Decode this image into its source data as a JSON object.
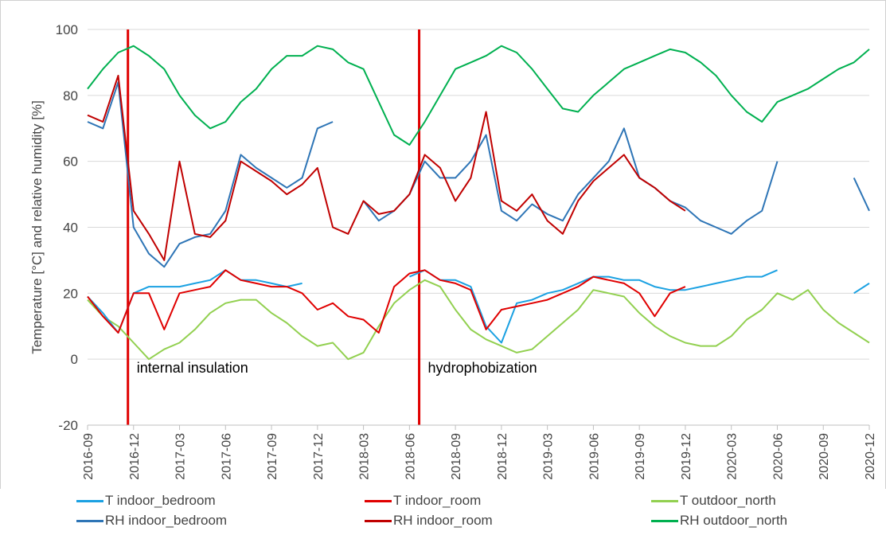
{
  "chart_data": {
    "type": "line",
    "xlabel": "",
    "ylabel": "Temperature [°C] and relative humidity [%]",
    "ylim": [
      -20,
      100
    ],
    "yticks": [
      -20,
      0,
      20,
      40,
      60,
      80,
      100
    ],
    "xrange": [
      "2016-09",
      "2020-12"
    ],
    "xticks": [
      "2016-09",
      "2016-12",
      "2017-03",
      "2017-06",
      "2017-09",
      "2017-12",
      "2018-03",
      "2018-06",
      "2018-09",
      "2018-12",
      "2019-03",
      "2019-06",
      "2019-09",
      "2019-12",
      "2020-03",
      "2020-06",
      "2020-09",
      "2020-12"
    ],
    "grid": "horizontal",
    "legend_position": "bottom",
    "events": [
      {
        "label": "internal insulation",
        "x": "2016-11-20",
        "color": "#e00000"
      },
      {
        "label": "hydrophobization",
        "x": "2018-06-20",
        "color": "#e00000"
      }
    ],
    "series": [
      {
        "name": "T indoor_bedroom",
        "color": "#1ba1e2",
        "points": [
          [
            "2016-09",
            19
          ],
          [
            "2016-10",
            14
          ],
          [
            "2016-11",
            8
          ],
          [
            "2016-12",
            20
          ],
          [
            "2017-01",
            22
          ],
          [
            "2017-02",
            22
          ],
          [
            "2017-03",
            22
          ],
          [
            "2017-04",
            23
          ],
          [
            "2017-05",
            24
          ],
          [
            "2017-06",
            27
          ],
          [
            "2017-07",
            24
          ],
          [
            "2017-08",
            24
          ],
          [
            "2017-09",
            23
          ],
          [
            "2017-10",
            22
          ],
          [
            "2017-11",
            23
          ],
          [
            "2017-12",
            null
          ],
          [
            "2018-06",
            25
          ],
          [
            "2018-07",
            27
          ],
          [
            "2018-08",
            24
          ],
          [
            "2018-09",
            24
          ],
          [
            "2018-10",
            22
          ],
          [
            "2018-11",
            10
          ],
          [
            "2018-12",
            5
          ],
          [
            "2019-01",
            17
          ],
          [
            "2019-02",
            18
          ],
          [
            "2019-03",
            20
          ],
          [
            "2019-04",
            21
          ],
          [
            "2019-05",
            23
          ],
          [
            "2019-06",
            25
          ],
          [
            "2019-07",
            25
          ],
          [
            "2019-08",
            24
          ],
          [
            "2019-09",
            24
          ],
          [
            "2019-10",
            22
          ],
          [
            "2019-11",
            21
          ],
          [
            "2019-12",
            21
          ],
          [
            "2020-01",
            22
          ],
          [
            "2020-02",
            23
          ],
          [
            "2020-03",
            24
          ],
          [
            "2020-04",
            25
          ],
          [
            "2020-05",
            25
          ],
          [
            "2020-06",
            27
          ],
          [
            "2020-07",
            null
          ],
          [
            "2020-11",
            20
          ],
          [
            "2020-12",
            23
          ]
        ]
      },
      {
        "name": "T indoor_room",
        "color": "#e00000",
        "points": [
          [
            "2016-09",
            19
          ],
          [
            "2016-10",
            13
          ],
          [
            "2016-11",
            8
          ],
          [
            "2016-12",
            20
          ],
          [
            "2017-01",
            20
          ],
          [
            "2017-02",
            9
          ],
          [
            "2017-03",
            20
          ],
          [
            "2017-04",
            21
          ],
          [
            "2017-05",
            22
          ],
          [
            "2017-06",
            27
          ],
          [
            "2017-07",
            24
          ],
          [
            "2017-08",
            23
          ],
          [
            "2017-09",
            22
          ],
          [
            "2017-10",
            22
          ],
          [
            "2017-11",
            20
          ],
          [
            "2017-12",
            15
          ],
          [
            "2018-01",
            17
          ],
          [
            "2018-02",
            13
          ],
          [
            "2018-03",
            12
          ],
          [
            "2018-04",
            8
          ],
          [
            "2018-05",
            22
          ],
          [
            "2018-06",
            26
          ],
          [
            "2018-07",
            27
          ],
          [
            "2018-08",
            24
          ],
          [
            "2018-09",
            23
          ],
          [
            "2018-10",
            21
          ],
          [
            "2018-11",
            9
          ],
          [
            "2018-12",
            15
          ],
          [
            "2019-01",
            16
          ],
          [
            "2019-02",
            17
          ],
          [
            "2019-03",
            18
          ],
          [
            "2019-04",
            20
          ],
          [
            "2019-05",
            22
          ],
          [
            "2019-06",
            25
          ],
          [
            "2019-07",
            24
          ],
          [
            "2019-08",
            23
          ],
          [
            "2019-09",
            20
          ],
          [
            "2019-10",
            13
          ],
          [
            "2019-11",
            20
          ],
          [
            "2019-12",
            22
          ]
        ]
      },
      {
        "name": "T outdoor_north",
        "color": "#92d050",
        "points": [
          [
            "2016-09",
            18
          ],
          [
            "2016-10",
            13
          ],
          [
            "2016-11",
            10
          ],
          [
            "2016-12",
            5
          ],
          [
            "2017-01",
            0
          ],
          [
            "2017-02",
            3
          ],
          [
            "2017-03",
            5
          ],
          [
            "2017-04",
            9
          ],
          [
            "2017-05",
            14
          ],
          [
            "2017-06",
            17
          ],
          [
            "2017-07",
            18
          ],
          [
            "2017-08",
            18
          ],
          [
            "2017-09",
            14
          ],
          [
            "2017-10",
            11
          ],
          [
            "2017-11",
            7
          ],
          [
            "2017-12",
            4
          ],
          [
            "2018-01",
            5
          ],
          [
            "2018-02",
            0
          ],
          [
            "2018-03",
            2
          ],
          [
            "2018-04",
            10
          ],
          [
            "2018-05",
            17
          ],
          [
            "2018-06",
            21
          ],
          [
            "2018-07",
            24
          ],
          [
            "2018-08",
            22
          ],
          [
            "2018-09",
            15
          ],
          [
            "2018-10",
            9
          ],
          [
            "2018-11",
            6
          ],
          [
            "2018-12",
            4
          ],
          [
            "2019-01",
            2
          ],
          [
            "2019-02",
            3
          ],
          [
            "2019-03",
            7
          ],
          [
            "2019-04",
            11
          ],
          [
            "2019-05",
            15
          ],
          [
            "2019-06",
            21
          ],
          [
            "2019-07",
            20
          ],
          [
            "2019-08",
            19
          ],
          [
            "2019-09",
            14
          ],
          [
            "2019-10",
            10
          ],
          [
            "2019-11",
            7
          ],
          [
            "2019-12",
            5
          ],
          [
            "2020-01",
            4
          ],
          [
            "2020-02",
            4
          ],
          [
            "2020-03",
            7
          ],
          [
            "2020-04",
            12
          ],
          [
            "2020-05",
            15
          ],
          [
            "2020-06",
            20
          ],
          [
            "2020-07",
            18
          ],
          [
            "2020-08",
            21
          ],
          [
            "2020-09",
            15
          ],
          [
            "2020-10",
            11
          ],
          [
            "2020-11",
            8
          ],
          [
            "2020-12",
            5
          ]
        ]
      },
      {
        "name": "RH indoor_bedroom",
        "color": "#2e75b6",
        "points": [
          [
            "2016-09",
            72
          ],
          [
            "2016-10",
            70
          ],
          [
            "2016-11",
            84
          ],
          [
            "2016-12",
            40
          ],
          [
            "2017-01",
            32
          ],
          [
            "2017-02",
            28
          ],
          [
            "2017-03",
            35
          ],
          [
            "2017-04",
            37
          ],
          [
            "2017-05",
            38
          ],
          [
            "2017-06",
            45
          ],
          [
            "2017-07",
            62
          ],
          [
            "2017-08",
            58
          ],
          [
            "2017-09",
            55
          ],
          [
            "2017-10",
            52
          ],
          [
            "2017-11",
            55
          ],
          [
            "2017-12",
            70
          ],
          [
            "2018-01",
            72
          ],
          [
            "2018-02",
            null
          ],
          [
            "2018-03",
            48
          ],
          [
            "2018-04",
            42
          ],
          [
            "2018-05",
            45
          ],
          [
            "2018-06",
            50
          ],
          [
            "2018-07",
            60
          ],
          [
            "2018-08",
            55
          ],
          [
            "2018-09",
            55
          ],
          [
            "2018-10",
            60
          ],
          [
            "2018-11",
            68
          ],
          [
            "2018-12",
            45
          ],
          [
            "2019-01",
            42
          ],
          [
            "2019-02",
            47
          ],
          [
            "2019-03",
            44
          ],
          [
            "2019-04",
            42
          ],
          [
            "2019-05",
            50
          ],
          [
            "2019-06",
            55
          ],
          [
            "2019-07",
            60
          ],
          [
            "2019-08",
            70
          ],
          [
            "2019-09",
            55
          ],
          [
            "2019-10",
            52
          ],
          [
            "2019-11",
            48
          ],
          [
            "2019-12",
            46
          ],
          [
            "2020-01",
            42
          ],
          [
            "2020-02",
            40
          ],
          [
            "2020-03",
            38
          ],
          [
            "2020-04",
            42
          ],
          [
            "2020-05",
            45
          ],
          [
            "2020-06",
            60
          ],
          [
            "2020-07",
            null
          ],
          [
            "2020-11",
            55
          ],
          [
            "2020-12",
            45
          ]
        ]
      },
      {
        "name": "RH indoor_room",
        "color": "#c00000",
        "points": [
          [
            "2016-09",
            74
          ],
          [
            "2016-10",
            72
          ],
          [
            "2016-11",
            86
          ],
          [
            "2016-12",
            45
          ],
          [
            "2017-01",
            38
          ],
          [
            "2017-02",
            30
          ],
          [
            "2017-03",
            60
          ],
          [
            "2017-04",
            38
          ],
          [
            "2017-05",
            37
          ],
          [
            "2017-06",
            42
          ],
          [
            "2017-07",
            60
          ],
          [
            "2017-08",
            57
          ],
          [
            "2017-09",
            54
          ],
          [
            "2017-10",
            50
          ],
          [
            "2017-11",
            53
          ],
          [
            "2017-12",
            58
          ],
          [
            "2018-01",
            40
          ],
          [
            "2018-02",
            38
          ],
          [
            "2018-03",
            48
          ],
          [
            "2018-04",
            44
          ],
          [
            "2018-05",
            45
          ],
          [
            "2018-06",
            50
          ],
          [
            "2018-07",
            62
          ],
          [
            "2018-08",
            58
          ],
          [
            "2018-09",
            48
          ],
          [
            "2018-10",
            55
          ],
          [
            "2018-11",
            75
          ],
          [
            "2018-12",
            48
          ],
          [
            "2019-01",
            45
          ],
          [
            "2019-02",
            50
          ],
          [
            "2019-03",
            42
          ],
          [
            "2019-04",
            38
          ],
          [
            "2019-05",
            48
          ],
          [
            "2019-06",
            54
          ],
          [
            "2019-07",
            58
          ],
          [
            "2019-08",
            62
          ],
          [
            "2019-09",
            55
          ],
          [
            "2019-10",
            52
          ],
          [
            "2019-11",
            48
          ],
          [
            "2019-12",
            45
          ]
        ]
      },
      {
        "name": "RH outdoor_north",
        "color": "#00b050",
        "points": [
          [
            "2016-09",
            82
          ],
          [
            "2016-10",
            88
          ],
          [
            "2016-11",
            93
          ],
          [
            "2016-12",
            95
          ],
          [
            "2017-01",
            92
          ],
          [
            "2017-02",
            88
          ],
          [
            "2017-03",
            80
          ],
          [
            "2017-04",
            74
          ],
          [
            "2017-05",
            70
          ],
          [
            "2017-06",
            72
          ],
          [
            "2017-07",
            78
          ],
          [
            "2017-08",
            82
          ],
          [
            "2017-09",
            88
          ],
          [
            "2017-10",
            92
          ],
          [
            "2017-11",
            92
          ],
          [
            "2017-12",
            95
          ],
          [
            "2018-01",
            94
          ],
          [
            "2018-02",
            90
          ],
          [
            "2018-03",
            88
          ],
          [
            "2018-04",
            78
          ],
          [
            "2018-05",
            68
          ],
          [
            "2018-06",
            65
          ],
          [
            "2018-07",
            72
          ],
          [
            "2018-08",
            80
          ],
          [
            "2018-09",
            88
          ],
          [
            "2018-10",
            90
          ],
          [
            "2018-11",
            92
          ],
          [
            "2018-12",
            95
          ],
          [
            "2019-01",
            93
          ],
          [
            "2019-02",
            88
          ],
          [
            "2019-03",
            82
          ],
          [
            "2019-04",
            76
          ],
          [
            "2019-05",
            75
          ],
          [
            "2019-06",
            80
          ],
          [
            "2019-07",
            84
          ],
          [
            "2019-08",
            88
          ],
          [
            "2019-09",
            90
          ],
          [
            "2019-10",
            92
          ],
          [
            "2019-11",
            94
          ],
          [
            "2019-12",
            93
          ],
          [
            "2020-01",
            90
          ],
          [
            "2020-02",
            86
          ],
          [
            "2020-03",
            80
          ],
          [
            "2020-04",
            75
          ],
          [
            "2020-05",
            72
          ],
          [
            "2020-06",
            78
          ],
          [
            "2020-07",
            80
          ],
          [
            "2020-08",
            82
          ],
          [
            "2020-09",
            85
          ],
          [
            "2020-10",
            88
          ],
          [
            "2020-11",
            90
          ],
          [
            "2020-12",
            94
          ]
        ]
      }
    ]
  }
}
